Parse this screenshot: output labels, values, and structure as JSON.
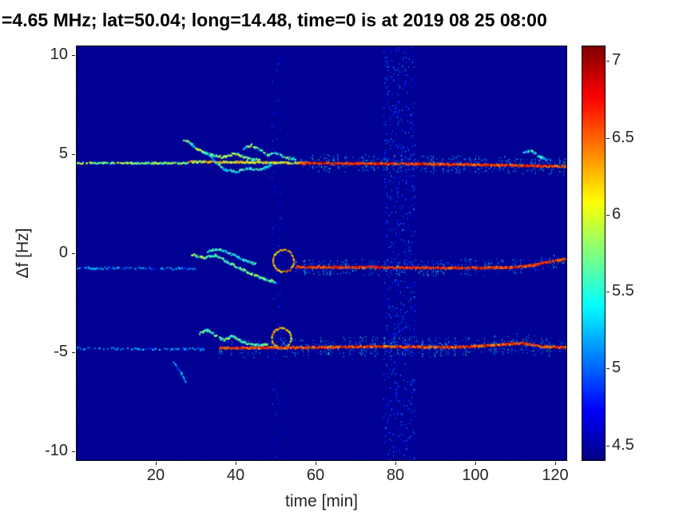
{
  "window": {
    "background": "#ffffff"
  },
  "axis": {
    "tick_color": "#262626",
    "frame_color": "#000000",
    "title_color": "#000000"
  },
  "chart_data": {
    "type": "spectrogram",
    "title": "=4.65 MHz;  lat=50.04; long=14.48, time=0 is at 2019 08 25 08:00",
    "xlabel": "time [min]",
    "ylabel": "Δf [Hz]",
    "xlim": [
      0,
      123
    ],
    "ylim": [
      -10.5,
      10.5
    ],
    "xticks": [
      20,
      40,
      60,
      80,
      100,
      120
    ],
    "yticks": [
      -10,
      -5,
      0,
      5,
      10
    ],
    "grid": false,
    "colormap": "jet",
    "colorbar": {
      "min": 4.4,
      "max": 7.1,
      "ticks": [
        4.5,
        5,
        5.5,
        6,
        6.5,
        7
      ],
      "position": "right"
    },
    "background_value": 4.45,
    "description": "Doppler shift spectrogram: three persistent traces near +4.5 Hz, -0.7 Hz and -4.7 Hz; wandering filaments between 27 and 58 min; faint vertical interference band near 78-85 min",
    "noise": {
      "density": 0.02,
      "vrange": [
        4.45,
        4.8
      ]
    },
    "bands": [
      {
        "x0": 77,
        "x1": 85,
        "vrange": [
          4.55,
          5.1
        ],
        "density": 0.1
      },
      {
        "x0": 49,
        "x1": 51.5,
        "vrange": [
          4.55,
          4.95
        ],
        "density": 0.05
      }
    ],
    "traces": [
      {
        "kind": "path",
        "path": [
          [
            0,
            4.55
          ],
          [
            28,
            4.55
          ]
        ],
        "vrange": [
          5.4,
          6.1
        ],
        "density": 6,
        "jitter": 0.04,
        "size": 2,
        "keep": 0.8
      },
      {
        "kind": "path",
        "path": [
          [
            28,
            4.62
          ],
          [
            40,
            4.6
          ],
          [
            52,
            4.57
          ],
          [
            58,
            4.55
          ]
        ],
        "vrange": [
          5.6,
          6.5
        ],
        "density": 8,
        "jitter": 0.05,
        "size": 2,
        "keep": 0.85
      },
      {
        "kind": "path",
        "path": [
          [
            56,
            4.55
          ],
          [
            80,
            4.52
          ],
          [
            100,
            4.48
          ],
          [
            113,
            4.42
          ],
          [
            123,
            4.38
          ]
        ],
        "vrange": [
          6.3,
          7.05
        ],
        "density": 10,
        "jitter": 0.05,
        "size": 2,
        "keep": 0.95,
        "spikes": {
          "prob": 0.13,
          "len": 0.45,
          "vrange": [
            4.8,
            5.8
          ]
        }
      },
      {
        "kind": "path",
        "path": [
          [
            56,
            4.55
          ],
          [
            123,
            4.4
          ]
        ],
        "vrange": [
          4.7,
          5.5
        ],
        "density": 9,
        "jitter": 0.35,
        "size": 1,
        "keep": 0.55
      },
      {
        "kind": "path",
        "path": [
          [
            27,
            5.75
          ],
          [
            29,
            5.5
          ],
          [
            31,
            5.2
          ],
          [
            34,
            4.95
          ],
          [
            37,
            4.85
          ],
          [
            40,
            5.05
          ],
          [
            43,
            4.78
          ],
          [
            46,
            4.7
          ]
        ],
        "vrange": [
          5.2,
          6.2
        ],
        "density": 7,
        "jitter": 0.06,
        "size": 2,
        "keep": 0.85
      },
      {
        "kind": "path",
        "path": [
          [
            33,
            5.05
          ],
          [
            35,
            4.6
          ],
          [
            37,
            4.25
          ],
          [
            40,
            4.1
          ],
          [
            43,
            4.3
          ],
          [
            46,
            4.2
          ],
          [
            49,
            4.45
          ]
        ],
        "vrange": [
          5.0,
          5.9
        ],
        "density": 6,
        "jitter": 0.06,
        "size": 2,
        "keep": 0.8
      },
      {
        "kind": "path",
        "path": [
          [
            42,
            5.3
          ],
          [
            44,
            5.45
          ],
          [
            46,
            5.25
          ],
          [
            48,
            4.95
          ],
          [
            50,
            5.1
          ],
          [
            52,
            4.85
          ],
          [
            55,
            4.75
          ]
        ],
        "vrange": [
          5.1,
          6.0
        ],
        "density": 6,
        "jitter": 0.06,
        "size": 2,
        "keep": 0.8
      },
      {
        "kind": "path",
        "path": [
          [
            112,
            5.05
          ],
          [
            114,
            5.2
          ],
          [
            116,
            4.9
          ],
          [
            118,
            4.7
          ]
        ],
        "vrange": [
          5.0,
          5.8
        ],
        "density": 6,
        "jitter": 0.06,
        "size": 2,
        "keep": 0.7
      },
      {
        "kind": "path",
        "path": [
          [
            0,
            -0.75
          ],
          [
            30,
            -0.78
          ]
        ],
        "vrange": [
          4.8,
          5.4
        ],
        "density": 4,
        "jitter": 0.06,
        "size": 2,
        "keep": 0.55
      },
      {
        "kind": "path",
        "path": [
          [
            29,
            -0.05
          ],
          [
            32,
            -0.25
          ],
          [
            35,
            -0.1
          ],
          [
            38,
            -0.45
          ],
          [
            41,
            -0.75
          ],
          [
            44,
            -1.05
          ],
          [
            47,
            -1.3
          ],
          [
            50,
            -1.45
          ]
        ],
        "vrange": [
          5.2,
          6.1
        ],
        "density": 7,
        "jitter": 0.06,
        "size": 2,
        "keep": 0.85
      },
      {
        "kind": "path",
        "path": [
          [
            33,
            0.1
          ],
          [
            36,
            0.2
          ],
          [
            39,
            -0.05
          ],
          [
            42,
            -0.35
          ],
          [
            45,
            -0.55
          ]
        ],
        "vrange": [
          5.0,
          5.8
        ],
        "density": 6,
        "jitter": 0.05,
        "size": 2,
        "keep": 0.8
      },
      {
        "kind": "ellipse",
        "cx": 52,
        "cy": -0.4,
        "rx": 2.6,
        "ry": 0.55,
        "vrange": [
          5.8,
          6.6
        ],
        "density": 60,
        "jitter": 0.04,
        "size": 2,
        "keep": 0.9
      },
      {
        "kind": "path",
        "path": [
          [
            55,
            -0.7
          ],
          [
            75,
            -0.72
          ],
          [
            95,
            -0.75
          ],
          [
            110,
            -0.72
          ],
          [
            115,
            -0.6
          ],
          [
            119,
            -0.42
          ],
          [
            123,
            -0.3
          ]
        ],
        "vrange": [
          6.3,
          7.05
        ],
        "density": 10,
        "jitter": 0.05,
        "size": 2,
        "keep": 0.95,
        "spikes": {
          "prob": 0.12,
          "len": 0.4,
          "vrange": [
            4.8,
            5.7
          ]
        }
      },
      {
        "kind": "path",
        "path": [
          [
            55,
            -0.72
          ],
          [
            123,
            -0.5
          ]
        ],
        "vrange": [
          4.7,
          5.4
        ],
        "density": 8,
        "jitter": 0.3,
        "size": 1,
        "keep": 0.5
      },
      {
        "kind": "path",
        "path": [
          [
            0,
            -4.82
          ],
          [
            32,
            -4.85
          ]
        ],
        "vrange": [
          4.8,
          5.4
        ],
        "density": 4,
        "jitter": 0.06,
        "size": 2,
        "keep": 0.5
      },
      {
        "kind": "path",
        "path": [
          [
            24.5,
            -5.5
          ],
          [
            26.5,
            -6.1
          ],
          [
            27.5,
            -6.5
          ]
        ],
        "vrange": [
          4.9,
          5.4
        ],
        "density": 6,
        "jitter": 0.05,
        "size": 2,
        "keep": 0.8
      },
      {
        "kind": "path",
        "path": [
          [
            31,
            -4.05
          ],
          [
            33,
            -3.9
          ],
          [
            35,
            -4.15
          ],
          [
            37,
            -4.4
          ],
          [
            39,
            -4.2
          ],
          [
            42,
            -4.5
          ],
          [
            45,
            -4.65
          ],
          [
            48,
            -4.6
          ]
        ],
        "vrange": [
          5.2,
          6.1
        ],
        "density": 7,
        "jitter": 0.06,
        "size": 2,
        "keep": 0.85
      },
      {
        "kind": "ellipse",
        "cx": 51.5,
        "cy": -4.3,
        "rx": 2.4,
        "ry": 0.5,
        "vrange": [
          5.8,
          6.6
        ],
        "density": 60,
        "jitter": 0.04,
        "size": 2,
        "keep": 0.9
      },
      {
        "kind": "path",
        "path": [
          [
            36,
            -4.8
          ],
          [
            55,
            -4.78
          ],
          [
            75,
            -4.72
          ],
          [
            95,
            -4.76
          ],
          [
            107,
            -4.62
          ],
          [
            112,
            -4.55
          ],
          [
            117,
            -4.72
          ],
          [
            123,
            -4.78
          ]
        ],
        "vrange": [
          6.2,
          7.05
        ],
        "density": 10,
        "jitter": 0.05,
        "size": 2,
        "keep": 0.95,
        "spikes": {
          "prob": 0.14,
          "len": 0.5,
          "vrange": [
            4.8,
            5.7
          ]
        }
      },
      {
        "kind": "path",
        "path": [
          [
            36,
            -4.78
          ],
          [
            123,
            -4.7
          ]
        ],
        "vrange": [
          4.7,
          5.4
        ],
        "density": 8,
        "jitter": 0.35,
        "size": 1,
        "keep": 0.55
      }
    ]
  }
}
